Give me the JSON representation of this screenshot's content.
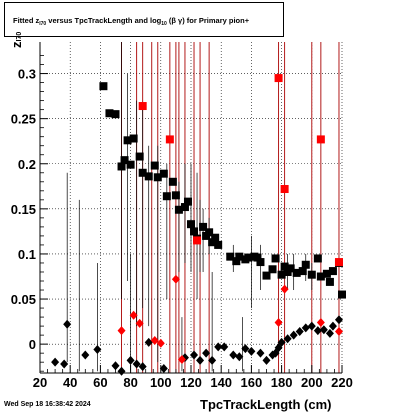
{
  "title": {
    "prefix": "Fitted  z",
    "sub1": "I70",
    "middle": "  versus TpcTrackLength and log",
    "sub2": "10",
    "suffix": " (β  γ) for Primary pion+"
  },
  "footer": {
    "date": "Wed Sep 18 16:38:42 2024"
  },
  "axis": {
    "xlabel": "TpcTrackLength (cm)",
    "ylabel_main": "z",
    "ylabel_sub": "I70"
  },
  "colors": {
    "black_series": "#000000",
    "red_series": "#ff0000",
    "grid": "#000000",
    "red_lines": "#aa0000"
  },
  "chart_data": {
    "type": "scatter",
    "xlim": [
      20,
      220
    ],
    "ylim": [
      -0.032,
      0.335
    ],
    "xticks": [
      20,
      40,
      60,
      80,
      100,
      120,
      140,
      160,
      180,
      200,
      220
    ],
    "yticks": [
      0,
      0.05,
      0.1,
      0.15,
      0.2,
      0.25,
      0.3
    ],
    "ytick_labels": [
      "0",
      "0.05",
      "0.1",
      "0.15",
      "0.2",
      "0.25",
      "0.3"
    ],
    "grid": true,
    "vertical_lines_x": [
      74,
      84,
      88,
      94,
      98,
      106,
      110,
      112,
      116,
      122,
      126,
      132,
      178,
      182,
      200,
      206,
      218
    ],
    "series": [
      {
        "marker": "square",
        "color": "#000000",
        "points": [
          [
            62,
            0.286
          ],
          [
            66,
            0.256
          ],
          [
            70,
            0.255
          ],
          [
            74,
            0.197
          ],
          [
            76,
            0.204
          ],
          [
            78,
            0.226
          ],
          [
            80,
            0.199
          ],
          [
            82,
            0.228
          ],
          [
            86,
            0.208
          ],
          [
            88,
            0.19
          ],
          [
            92,
            0.186
          ],
          [
            96,
            0.198
          ],
          [
            98,
            0.185
          ],
          [
            102,
            0.189
          ],
          [
            104,
            0.164
          ],
          [
            108,
            0.18
          ],
          [
            110,
            0.165
          ],
          [
            112,
            0.149
          ],
          [
            116,
            0.152
          ],
          [
            118,
            0.158
          ],
          [
            120,
            0.133
          ],
          [
            122,
            0.125
          ],
          [
            124,
            0.117
          ],
          [
            128,
            0.13
          ],
          [
            130,
            0.12
          ],
          [
            132,
            0.124
          ],
          [
            134,
            0.113
          ],
          [
            136,
            0.118
          ],
          [
            138,
            0.11
          ],
          [
            146,
            0.097
          ],
          [
            150,
            0.092
          ],
          [
            152,
            0.097
          ],
          [
            156,
            0.094
          ],
          [
            158,
            0.096
          ],
          [
            162,
            0.097
          ],
          [
            164,
            0.096
          ],
          [
            166,
            0.091
          ],
          [
            170,
            0.076
          ],
          [
            174,
            0.083
          ],
          [
            176,
            0.095
          ],
          [
            180,
            0.077
          ],
          [
            182,
            0.086
          ],
          [
            184,
            0.08
          ],
          [
            186,
            0.084
          ],
          [
            190,
            0.079
          ],
          [
            194,
            0.081
          ],
          [
            196,
            0.088
          ],
          [
            200,
            0.077
          ],
          [
            204,
            0.095
          ],
          [
            206,
            0.075
          ],
          [
            210,
            0.078
          ],
          [
            212,
            0.069
          ],
          [
            214,
            0.081
          ],
          [
            218,
            0.09
          ],
          [
            220,
            0.055
          ]
        ]
      },
      {
        "marker": "square",
        "color": "#ff0000",
        "points": [
          [
            88,
            0.264
          ],
          [
            106,
            0.227
          ],
          [
            124,
            0.115
          ],
          [
            178,
            0.295
          ],
          [
            182,
            0.172
          ],
          [
            206,
            0.227
          ],
          [
            218,
            0.091
          ]
        ]
      },
      {
        "marker": "diamond",
        "color": "#000000",
        "points": [
          [
            30,
            -0.02
          ],
          [
            36,
            -0.022
          ],
          [
            38,
            0.022
          ],
          [
            50,
            -0.012
          ],
          [
            58,
            -0.006
          ],
          [
            70,
            -0.024
          ],
          [
            74,
            -0.03
          ],
          [
            80,
            -0.018
          ],
          [
            84,
            -0.022
          ],
          [
            88,
            -0.025
          ],
          [
            92,
            0.002
          ],
          [
            102,
            -0.027
          ],
          [
            116,
            -0.015
          ],
          [
            122,
            -0.012
          ],
          [
            126,
            -0.018
          ],
          [
            130,
            -0.01
          ],
          [
            134,
            -0.018
          ],
          [
            138,
            -0.003
          ],
          [
            142,
            -0.003
          ],
          [
            148,
            -0.012
          ],
          [
            152,
            -0.014
          ],
          [
            156,
            -0.005
          ],
          [
            160,
            -0.008
          ],
          [
            166,
            -0.01
          ],
          [
            170,
            -0.018
          ],
          [
            174,
            -0.012
          ],
          [
            176,
            -0.01
          ],
          [
            178,
            -0.004
          ],
          [
            180,
            0.002
          ],
          [
            184,
            0.006
          ],
          [
            188,
            0.01
          ],
          [
            192,
            0.014
          ],
          [
            196,
            0.018
          ],
          [
            200,
            0.02
          ],
          [
            204,
            0.015
          ],
          [
            208,
            0.016
          ],
          [
            212,
            0.012
          ],
          [
            214,
            0.02
          ],
          [
            218,
            0.027
          ]
        ]
      },
      {
        "marker": "diamond",
        "color": "#ff0000",
        "points": [
          [
            74,
            0.015
          ],
          [
            82,
            0.032
          ],
          [
            86,
            0.023
          ],
          [
            96,
            0.004
          ],
          [
            100,
            0.001
          ],
          [
            110,
            0.072
          ],
          [
            114,
            -0.017
          ],
          [
            178,
            0.024
          ],
          [
            182,
            0.061
          ],
          [
            206,
            0.024
          ],
          [
            218,
            0.014
          ]
        ]
      }
    ],
    "error_bars": [
      [
        74,
        0.05,
        0.34
      ],
      [
        78,
        0.07,
        0.3
      ],
      [
        84,
        0.02,
        0.27
      ],
      [
        88,
        0.04,
        0.26
      ],
      [
        92,
        0.02,
        0.22
      ],
      [
        98,
        -0.02,
        0.22
      ],
      [
        104,
        0.05,
        0.2
      ],
      [
        112,
        0.08,
        0.18
      ],
      [
        116,
        0.09,
        0.2
      ],
      [
        120,
        0.08,
        0.2
      ],
      [
        124,
        0.05,
        0.19
      ],
      [
        126,
        0.08,
        0.16
      ],
      [
        128,
        0.08,
        0.15
      ],
      [
        132,
        0.1,
        0.14
      ],
      [
        148,
        0.08,
        0.11
      ],
      [
        160,
        0.04,
        0.12
      ],
      [
        166,
        0.06,
        0.11
      ],
      [
        184,
        0.06,
        0.1
      ],
      [
        188,
        0.06,
        0.1
      ],
      [
        196,
        0.07,
        0.1
      ],
      [
        200,
        0.06,
        0.09
      ],
      [
        46,
        -0.03,
        0.16
      ],
      [
        38,
        -0.02,
        0.19
      ],
      [
        58,
        -0.03,
        0.09
      ],
      [
        80,
        -0.03,
        0.1
      ],
      [
        114,
        -0.03,
        0.03
      ],
      [
        134,
        -0.03,
        0.08
      ],
      [
        154,
        -0.03,
        0.03
      ]
    ]
  }
}
